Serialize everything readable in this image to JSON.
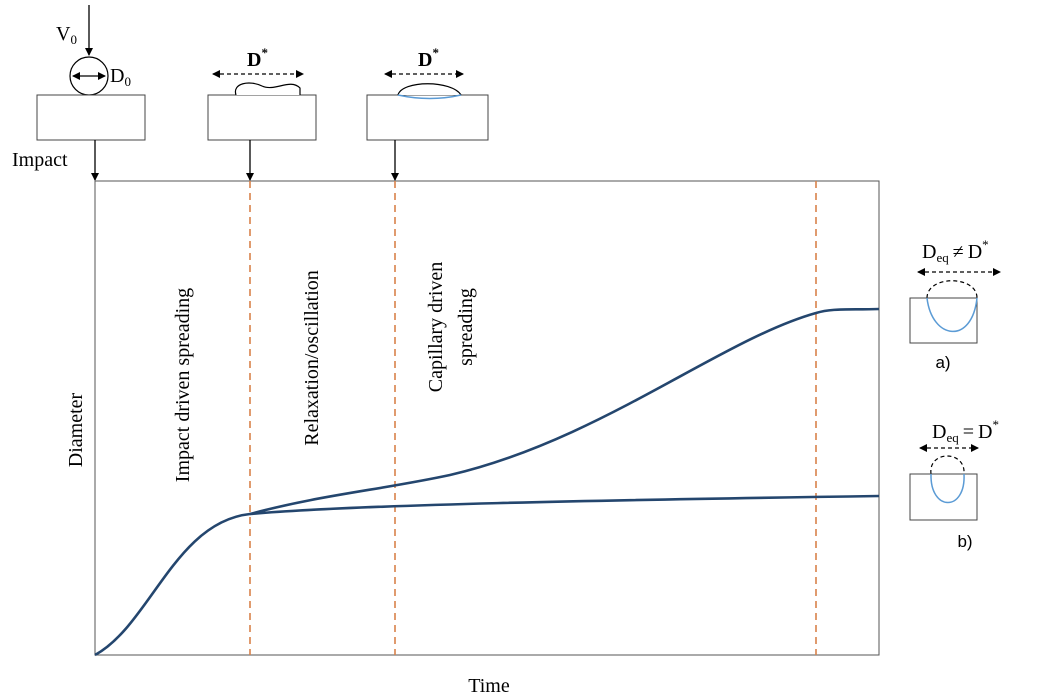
{
  "top": {
    "v0": {
      "base": "V",
      "sub": "0"
    },
    "d0": {
      "base": "D",
      "sub": "0"
    },
    "d_star_1": {
      "base": "D",
      "sup": "*"
    },
    "d_star_2": {
      "base": "D",
      "sup": "*"
    },
    "impact": "Impact"
  },
  "phases": {
    "impact": "Impact driven spreading",
    "relaxation": "Relaxation/oscillation",
    "capillary_1": "Capillary driven",
    "capillary_2": "spreading"
  },
  "axes": {
    "y": "Diameter",
    "x": "Time"
  },
  "right": {
    "a": {
      "lhs": "D",
      "lhs_sub": "eq",
      "op": "≠",
      "rhs": "D",
      "rhs_sup": "*",
      "caption": "a)"
    },
    "b": {
      "lhs": "D",
      "lhs_sub": "eq",
      "op": "=",
      "rhs": "D",
      "rhs_sup": "*",
      "caption": "b)"
    }
  }
}
